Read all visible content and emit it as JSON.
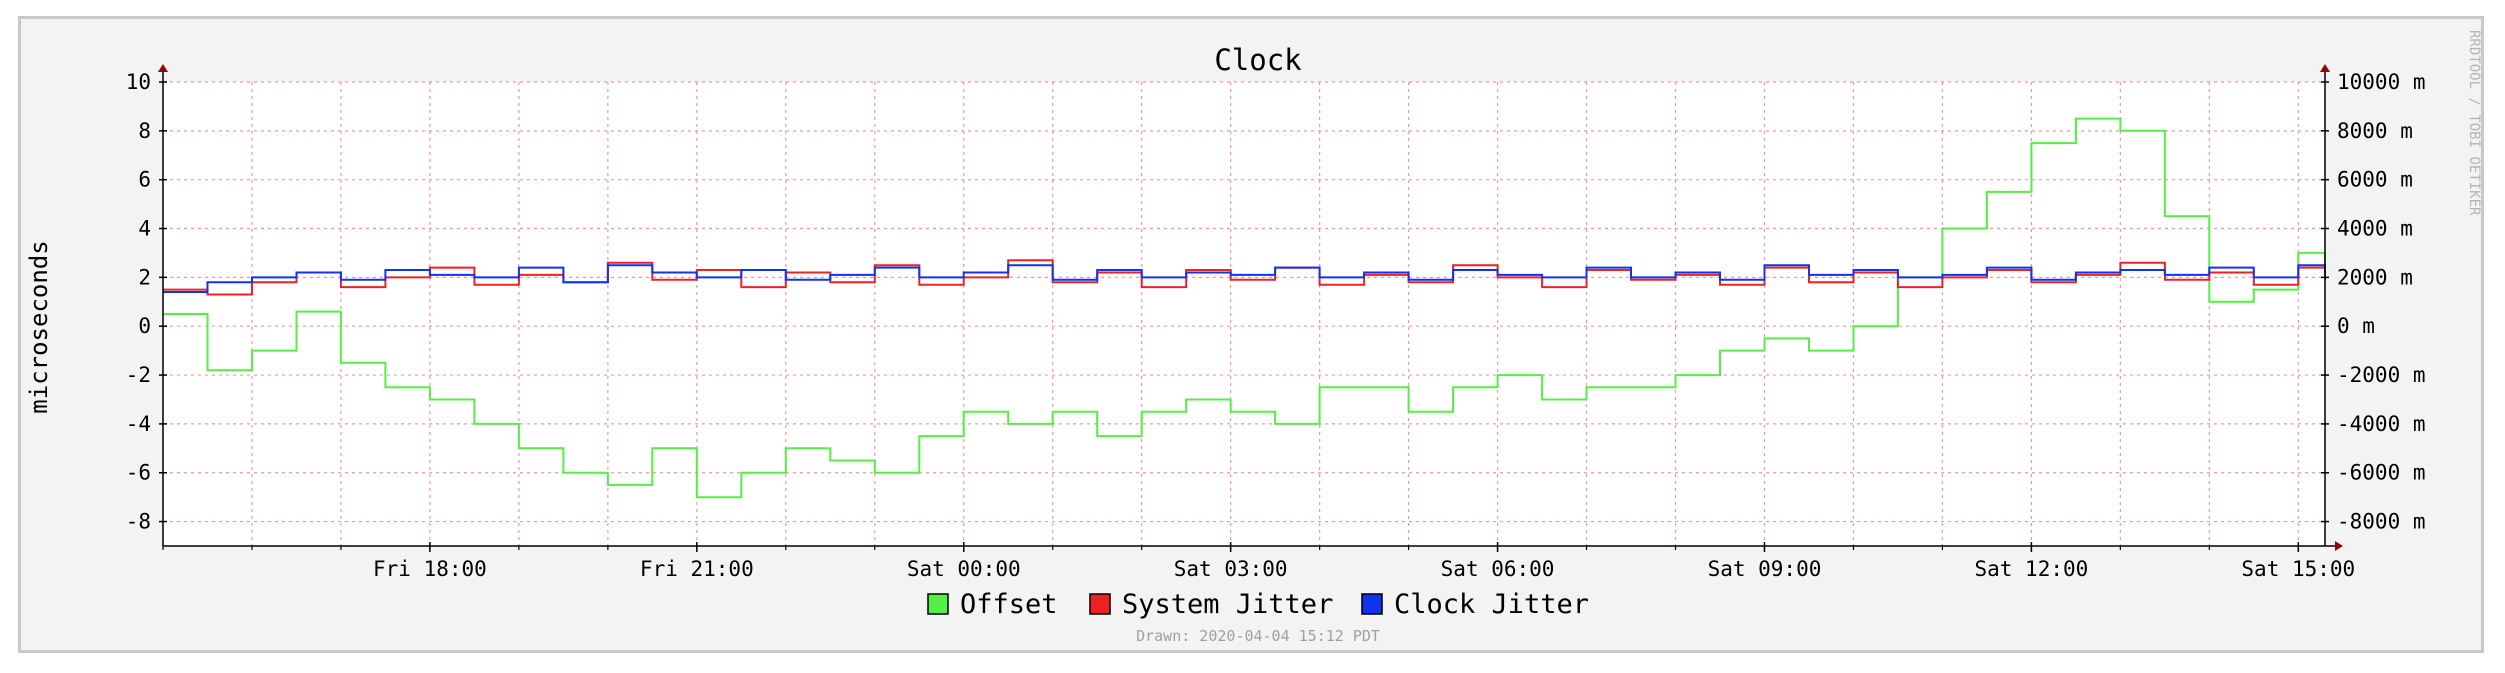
{
  "chart_data": {
    "type": "line",
    "title": "Clock",
    "ylabel": "microseconds",
    "watermark": "RRDTOOL / TOBI OETIKER",
    "drawn": "Drawn: 2020-04-04 15:12 PDT",
    "ylim": [
      -9,
      10
    ],
    "y_ticks": [
      10,
      8,
      6,
      4,
      2,
      0,
      -2,
      -4,
      -6,
      -8
    ],
    "y_tick_labels": [
      "10",
      "8",
      "6",
      "4",
      "2",
      "0",
      "-2",
      "-4",
      "-6",
      "-8"
    ],
    "y2_tick_labels": [
      "10000 m",
      "8000 m",
      "6000 m",
      "4000 m",
      "2000 m",
      "0 m",
      "-2000 m",
      "-4000 m",
      "-6000 m",
      "-8000 m"
    ],
    "x_hours_range": [
      -3.0,
      21.3
    ],
    "x_ticks": [
      0,
      3,
      6,
      9,
      12,
      15,
      18,
      21
    ],
    "x_tick_labels": [
      "Fri 18:00",
      "Fri 21:00",
      "Sat 00:00",
      "Sat 03:00",
      "Sat 06:00",
      "Sat 09:00",
      "Sat 12:00",
      "Sat 15:00"
    ],
    "grid": true,
    "legend_position": "bottom-center",
    "colors": {
      "Offset": "#55ee44",
      "System Jitter": "#ee2222",
      "Clock Jitter": "#1133ee",
      "grid": "#ee9999",
      "axis": "#000000",
      "arrow": "#990000"
    },
    "series": [
      {
        "name": "Offset",
        "x_hours": [
          -3.0,
          -2.5,
          -2.0,
          -1.5,
          -1.0,
          -0.5,
          0.0,
          0.5,
          1.0,
          1.5,
          2.0,
          2.5,
          3.0,
          3.5,
          4.0,
          4.5,
          5.0,
          5.5,
          6.0,
          6.5,
          7.0,
          7.5,
          8.0,
          8.5,
          9.0,
          9.5,
          10.0,
          10.5,
          11.0,
          11.5,
          12.0,
          12.5,
          13.0,
          13.5,
          14.0,
          14.5,
          15.0,
          15.5,
          16.0,
          16.5,
          17.0,
          17.5,
          18.0,
          18.5,
          19.0,
          19.5,
          20.0,
          20.5,
          21.0,
          21.3
        ],
        "values": [
          0.5,
          -1.8,
          -1.0,
          0.6,
          -1.5,
          -2.5,
          -3.0,
          -4.0,
          -5.0,
          -6.0,
          -6.5,
          -5.0,
          -7.0,
          -6.0,
          -5.0,
          -5.5,
          -6.0,
          -4.5,
          -3.5,
          -4.0,
          -3.5,
          -4.5,
          -3.5,
          -3.0,
          -3.5,
          -4.0,
          -2.5,
          -2.5,
          -3.5,
          -2.5,
          -2.0,
          -3.0,
          -2.5,
          -2.5,
          -2.0,
          -1.0,
          -0.5,
          -1.0,
          0.0,
          2.0,
          4.0,
          5.5,
          7.5,
          8.5,
          8.0,
          4.5,
          1.0,
          1.5,
          3.0,
          2.5
        ]
      },
      {
        "name": "System Jitter",
        "x_hours": [
          -3.0,
          -2.5,
          -2.0,
          -1.5,
          -1.0,
          -0.5,
          0.0,
          0.5,
          1.0,
          1.5,
          2.0,
          2.5,
          3.0,
          3.5,
          4.0,
          4.5,
          5.0,
          5.5,
          6.0,
          6.5,
          7.0,
          7.5,
          8.0,
          8.5,
          9.0,
          9.5,
          10.0,
          10.5,
          11.0,
          11.5,
          12.0,
          12.5,
          13.0,
          13.5,
          14.0,
          14.5,
          15.0,
          15.5,
          16.0,
          16.5,
          17.0,
          17.5,
          18.0,
          18.5,
          19.0,
          19.5,
          20.0,
          20.5,
          21.0,
          21.3
        ],
        "values": [
          1.5,
          1.3,
          1.8,
          2.2,
          1.6,
          2.0,
          2.4,
          1.7,
          2.1,
          1.8,
          2.6,
          1.9,
          2.3,
          1.6,
          2.2,
          1.8,
          2.5,
          1.7,
          2.0,
          2.7,
          1.8,
          2.2,
          1.6,
          2.3,
          1.9,
          2.4,
          1.7,
          2.1,
          1.8,
          2.5,
          2.0,
          1.6,
          2.3,
          1.9,
          2.1,
          1.7,
          2.4,
          1.8,
          2.2,
          1.6,
          2.0,
          2.3,
          1.8,
          2.1,
          2.6,
          1.9,
          2.2,
          1.7,
          2.4,
          1.9
        ]
      },
      {
        "name": "Clock Jitter",
        "x_hours": [
          -3.0,
          -2.5,
          -2.0,
          -1.5,
          -1.0,
          -0.5,
          0.0,
          0.5,
          1.0,
          1.5,
          2.0,
          2.5,
          3.0,
          3.5,
          4.0,
          4.5,
          5.0,
          5.5,
          6.0,
          6.5,
          7.0,
          7.5,
          8.0,
          8.5,
          9.0,
          9.5,
          10.0,
          10.5,
          11.0,
          11.5,
          12.0,
          12.5,
          13.0,
          13.5,
          14.0,
          14.5,
          15.0,
          15.5,
          16.0,
          16.5,
          17.0,
          17.5,
          18.0,
          18.5,
          19.0,
          19.5,
          20.0,
          20.5,
          21.0,
          21.3
        ],
        "values": [
          1.4,
          1.8,
          2.0,
          2.2,
          1.9,
          2.3,
          2.1,
          2.0,
          2.4,
          1.8,
          2.5,
          2.2,
          2.0,
          2.3,
          1.9,
          2.1,
          2.4,
          2.0,
          2.2,
          2.5,
          1.9,
          2.3,
          2.0,
          2.2,
          2.1,
          2.4,
          2.0,
          2.2,
          1.9,
          2.3,
          2.1,
          2.0,
          2.4,
          2.0,
          2.2,
          1.9,
          2.5,
          2.1,
          2.3,
          2.0,
          2.1,
          2.4,
          1.9,
          2.2,
          2.3,
          2.1,
          2.4,
          2.0,
          2.5,
          2.2
        ]
      }
    ]
  }
}
